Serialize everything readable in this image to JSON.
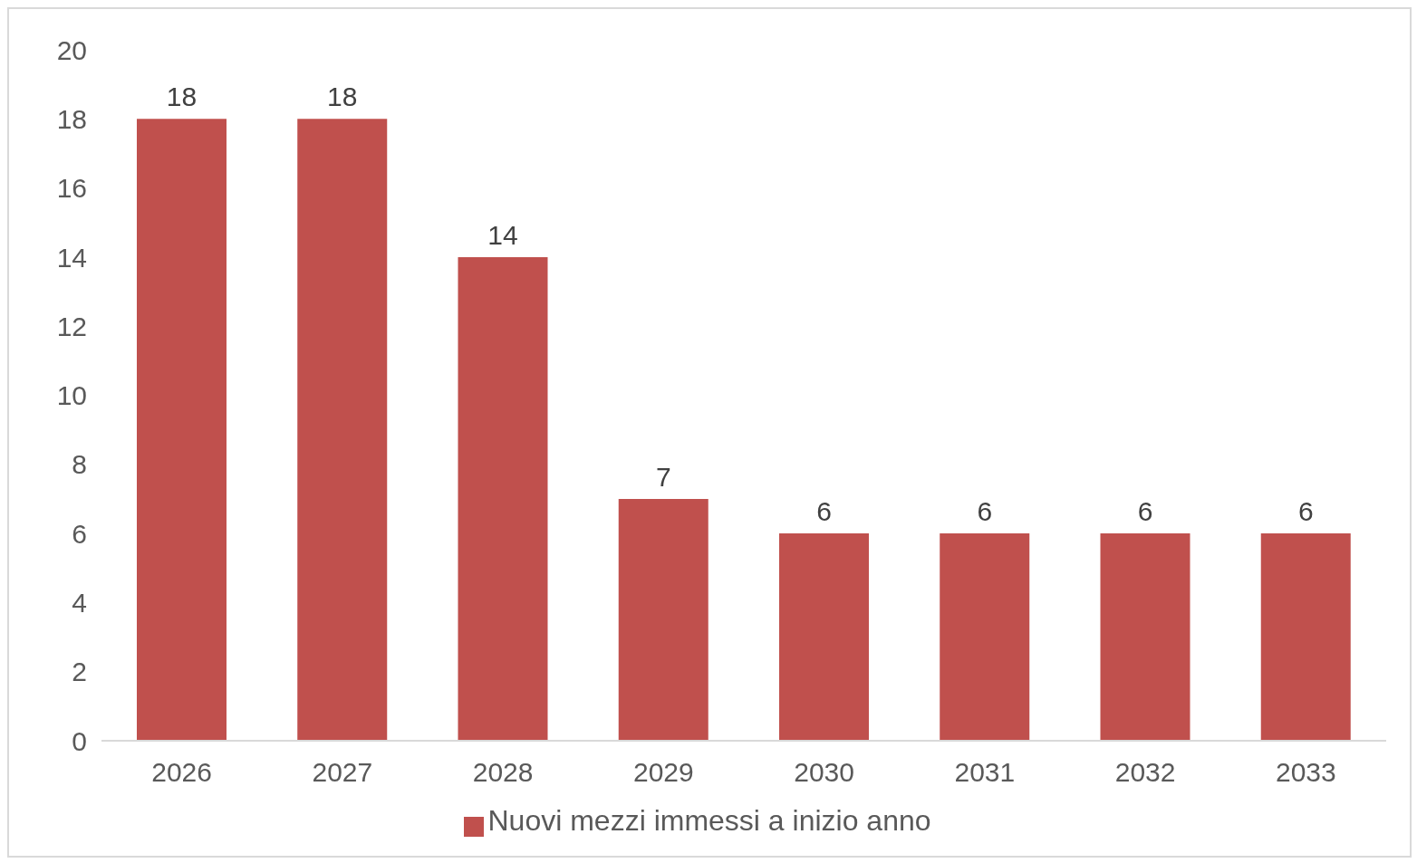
{
  "chart_data": {
    "type": "bar",
    "categories": [
      "2026",
      "2027",
      "2028",
      "2029",
      "2030",
      "2031",
      "2032",
      "2033"
    ],
    "series": [
      {
        "name": "Nuovi mezzi immessi a inizio anno",
        "color": "#c0504d",
        "values": [
          18,
          18,
          14,
          7,
          6,
          6,
          6,
          6
        ]
      }
    ],
    "ylim": [
      0,
      20
    ],
    "yticks": [
      0,
      2,
      4,
      6,
      8,
      10,
      12,
      14,
      16,
      18,
      20
    ],
    "data_labels": true,
    "legend": "bottom"
  }
}
